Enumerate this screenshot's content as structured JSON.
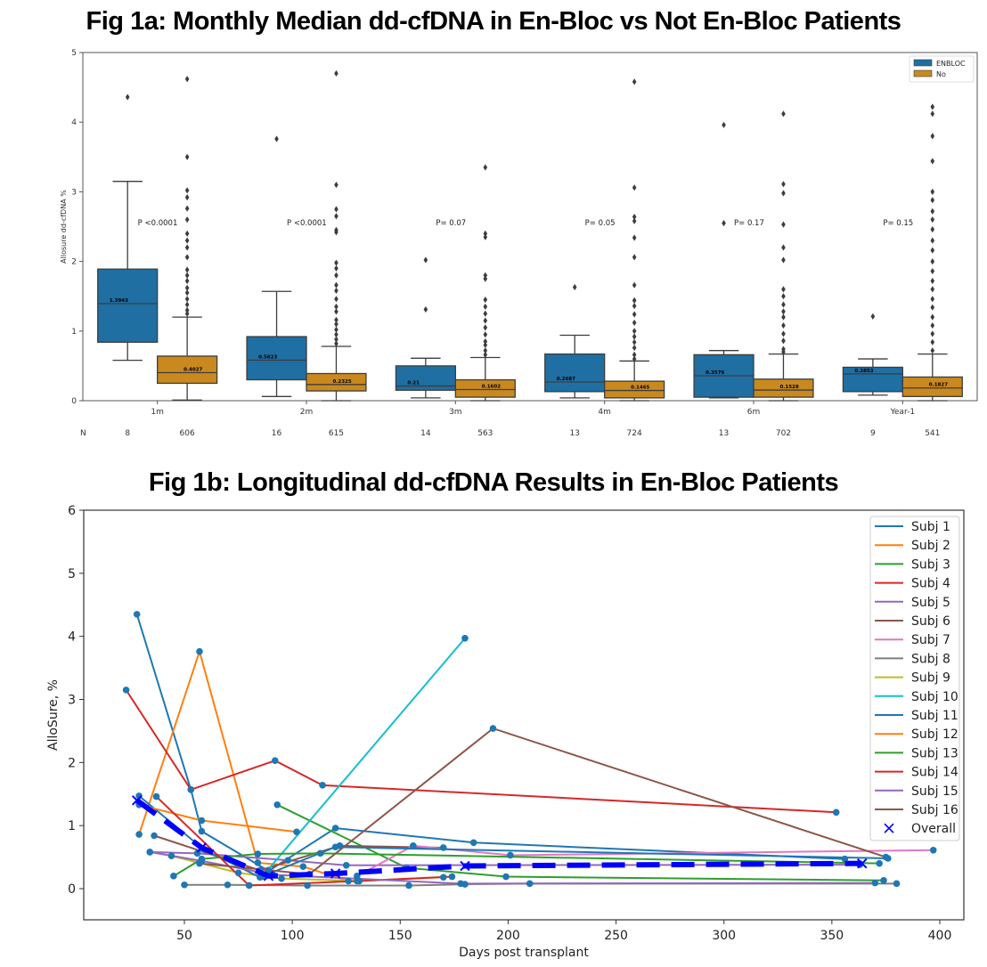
{
  "titles": {
    "fig_a": "Fig 1a: Monthly Median dd-cfDNA in En-Bloc vs Not En-Bloc Patients",
    "fig_b": "Fig 1b: Longitudinal dd-cfDNA Results in En-Bloc Patients"
  },
  "chart_data": [
    {
      "type": "box",
      "title": "Fig 1a: Monthly Median dd-cfDNA in En-Bloc vs Not En-Bloc Patients",
      "xlabel": "",
      "ylabel": "Allosure dd-cfDNA %",
      "ylim": [
        0,
        5
      ],
      "yticks": [
        "0",
        "1",
        "2",
        "3",
        "4",
        "5"
      ],
      "categories": [
        "1m",
        "2m",
        "3m",
        "4m",
        "6m",
        "Year-1"
      ],
      "n_label": "N",
      "legend": {
        "position": "top-right",
        "entries": [
          "ENBLOC",
          "No"
        ]
      },
      "colors": {
        "ENBLOC": "#1f6fa3",
        "No": "#c9891e"
      },
      "p_values": [
        "P <0.0001",
        "P <0.0001",
        "P= 0.07",
        "P= 0.05",
        "P= 0.17",
        "P= 0.15"
      ],
      "series": [
        {
          "name": "ENBLOC",
          "n": [
            "8",
            "16",
            "14",
            "13",
            "13",
            "9"
          ],
          "median_labels": [
            "1.3943",
            "0.5823",
            "0.21",
            "0.2687",
            "0.3576",
            "0.3853"
          ],
          "median": [
            1.3943,
            0.5823,
            0.21,
            0.2687,
            0.3576,
            0.3853
          ],
          "q1": [
            0.84,
            0.3,
            0.15,
            0.13,
            0.05,
            0.13
          ],
          "q3": [
            1.89,
            0.92,
            0.5,
            0.67,
            0.66,
            0.48
          ],
          "whisker_low": [
            0.58,
            0.06,
            0.04,
            0.04,
            0.04,
            0.08
          ],
          "whisker_high": [
            3.15,
            1.57,
            0.61,
            0.94,
            0.72,
            0.6
          ],
          "outliers": [
            [
              4.36
            ],
            [
              3.76
            ],
            [
              2.02,
              1.31
            ],
            [
              1.63
            ],
            [
              3.96,
              2.55
            ],
            [
              1.21
            ]
          ]
        },
        {
          "name": "No",
          "n": [
            "606",
            "615",
            "563",
            "724",
            "702",
            "541"
          ],
          "median_labels": [
            "0.4027",
            "0.2325",
            "0.1602",
            "0.1465",
            "0.1528",
            "0.1827"
          ],
          "median": [
            0.4027,
            0.2325,
            0.1602,
            0.1465,
            0.1528,
            0.1827
          ],
          "q1": [
            0.25,
            0.14,
            0.05,
            0.04,
            0.05,
            0.06
          ],
          "q3": [
            0.64,
            0.39,
            0.3,
            0.28,
            0.31,
            0.34
          ],
          "whisker_low": [
            0.01,
            0.0,
            0.0,
            0.0,
            0.0,
            0.0
          ],
          "whisker_high": [
            1.2,
            0.78,
            0.62,
            0.57,
            0.67,
            0.67
          ],
          "outliers": [
            [
              4.62,
              3.5,
              3.02,
              2.92,
              2.76,
              2.6,
              2.4,
              2.3,
              2.2,
              2.06,
              1.88,
              1.8,
              1.72,
              1.62,
              1.55,
              1.46,
              1.38,
              1.3,
              1.25
            ],
            [
              4.7,
              3.1,
              2.75,
              2.65,
              2.45,
              2.42,
              1.98,
              1.9,
              1.8,
              1.66,
              1.58,
              1.46,
              1.35,
              1.28,
              1.16,
              1.1,
              1.02,
              0.95,
              0.88,
              0.82
            ],
            [
              3.35,
              2.4,
              2.35,
              1.8,
              1.75,
              1.45,
              1.35,
              1.25,
              1.15,
              1.05,
              0.95,
              0.85,
              0.8,
              0.72,
              0.66
            ],
            [
              4.58,
              3.06,
              2.64,
              2.58,
              2.34,
              2.06,
              1.66,
              1.44,
              1.36,
              1.24,
              1.12,
              1.0,
              0.92,
              0.84,
              0.76,
              0.66,
              0.6
            ],
            [
              4.12,
              3.11,
              2.98,
              2.53,
              2.2,
              2.02,
              1.6,
              1.5,
              1.38,
              1.28,
              1.2,
              1.08,
              0.96,
              0.86,
              0.74,
              0.7
            ],
            [
              4.22,
              4.12,
              3.8,
              3.44,
              3.0,
              2.88,
              2.72,
              2.6,
              2.46,
              2.3,
              2.16,
              2.0,
              1.86,
              1.72,
              1.6,
              1.46,
              1.34,
              1.2,
              1.08,
              0.96,
              0.84,
              0.72
            ]
          ]
        }
      ]
    },
    {
      "type": "line",
      "title": "Fig 1b: Longitudinal dd-cfDNA Results in En-Bloc Patients",
      "xlabel": "Days post transplant",
      "ylabel": "AlloSure, %",
      "xlim": [
        15,
        405
      ],
      "ylim": [
        -0.5,
        6
      ],
      "xticks": [
        50,
        100,
        150,
        200,
        250,
        300,
        350,
        400
      ],
      "yticks": [
        0,
        1,
        2,
        3,
        4,
        5,
        6
      ],
      "grid": false,
      "legend": {
        "position": "top-right"
      },
      "marker_color": "#1f77b4",
      "series": [
        {
          "name": "Subj 1",
          "color": "#1f77b4",
          "points": [
            [
              28,
              4.35
            ],
            [
              53,
              1.57
            ],
            [
              58,
              0.91
            ],
            [
              89,
              0.28
            ],
            [
              120,
              0.96
            ],
            [
              184,
              0.73
            ],
            [
              356,
              0.47
            ]
          ]
        },
        {
          "name": "Subj 2",
          "color": "#ff7f0e",
          "points": [
            [
              29,
              0.86
            ],
            [
              57,
              3.76
            ],
            [
              84,
              0.41
            ],
            [
              105,
              0.35
            ],
            [
              126,
              0.12
            ]
          ]
        },
        {
          "name": "Subj 3",
          "color": "#2ca02c",
          "points": [
            [
              93,
              1.33
            ],
            [
              153,
              0.33
            ],
            [
              199,
              0.19
            ],
            [
              374,
              0.13
            ]
          ]
        },
        {
          "name": "Subj 4",
          "color": "#d62728",
          "points": [
            [
              23,
              3.15
            ],
            [
              53,
              1.57
            ],
            [
              92,
              2.03
            ],
            [
              114,
              1.64
            ],
            [
              352,
              1.21
            ]
          ]
        },
        {
          "name": "Subj 5",
          "color": "#9467bd",
          "points": [
            [
              34,
              0.58
            ],
            [
              56,
              0.56
            ],
            [
              98,
              0.45
            ],
            [
              125,
              0.37
            ],
            [
              363,
              0.38
            ]
          ]
        },
        {
          "name": "Subj 6",
          "color": "#8c564b",
          "points": [
            [
              36,
              0.84
            ],
            [
              85,
              0.29
            ],
            [
              122,
              0.68
            ],
            [
              170,
              0.65
            ]
          ]
        },
        {
          "name": "Subj 7",
          "color": "#e377c2",
          "points": [
            [
              130,
              0.2
            ],
            [
              156,
              0.68
            ],
            [
              201,
              0.53
            ],
            [
              397,
              0.61
            ]
          ]
        },
        {
          "name": "Subj 8",
          "color": "#7f7f7f",
          "points": [
            [
              50,
              0.06
            ],
            [
              70,
              0.06
            ],
            [
              107,
              0.05
            ],
            [
              154,
              0.05
            ],
            [
              180,
              0.07
            ],
            [
              210,
              0.08
            ],
            [
              380,
              0.08
            ]
          ]
        },
        {
          "name": "Subj 9",
          "color": "#bcbd22",
          "points": [
            [
              44,
              0.52
            ],
            [
              75,
              0.25
            ],
            [
              95,
              0.16
            ],
            [
              131,
              0.12
            ],
            [
              170,
              0.18
            ]
          ]
        },
        {
          "name": "Subj 10",
          "color": "#17becf",
          "points": [
            [
              86,
              0.19
            ],
            [
              180,
              3.97
            ]
          ]
        },
        {
          "name": "Subj 11",
          "color": "#1f77b4",
          "points": [
            [
              29,
              1.47
            ],
            [
              59,
              0.62
            ],
            [
              85,
              0.18
            ],
            [
              120,
              0.66
            ],
            [
              376,
              0.48
            ]
          ]
        },
        {
          "name": "Subj 12",
          "color": "#ff7f0e",
          "points": [
            [
              29,
              1.33
            ],
            [
              58,
              1.08
            ],
            [
              102,
              0.9
            ]
          ]
        },
        {
          "name": "Subj 13",
          "color": "#2ca02c",
          "points": [
            [
              45,
              0.2
            ],
            [
              58,
              0.47
            ],
            [
              84,
              0.55
            ],
            [
              113,
              0.56
            ],
            [
              372,
              0.4
            ]
          ]
        },
        {
          "name": "Subj 14",
          "color": "#d62728",
          "points": [
            [
              37,
              1.46
            ],
            [
              80,
              0.05
            ],
            [
              130,
              0.12
            ],
            [
              174,
              0.19
            ]
          ]
        },
        {
          "name": "Subj 15",
          "color": "#9467bd",
          "points": [
            [
              34,
              0.58
            ],
            [
              58,
              0.44
            ],
            [
              91,
              0.22
            ],
            [
              178,
              0.08
            ],
            [
              370,
              0.09
            ]
          ]
        },
        {
          "name": "Subj 16",
          "color": "#8c564b",
          "points": [
            [
              57,
              0.4
            ],
            [
              108,
              0.23
            ],
            [
              193,
              2.54
            ],
            [
              375,
              0.5
            ]
          ]
        }
      ],
      "overall": {
        "name": "Overall",
        "color": "#0000ff",
        "points": [
          [
            28,
            1.4
          ],
          [
            58,
            0.65
          ],
          [
            89,
            0.2
          ],
          [
            120,
            0.24
          ],
          [
            180,
            0.36
          ],
          [
            364,
            0.4
          ]
        ]
      }
    }
  ]
}
